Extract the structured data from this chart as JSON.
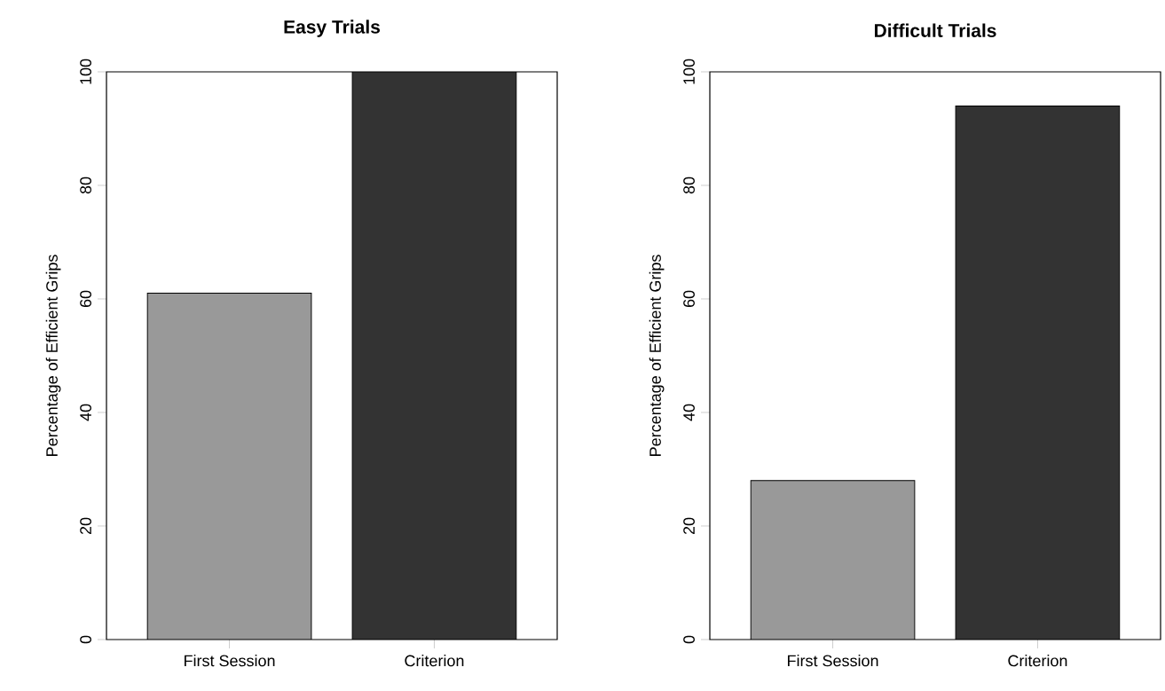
{
  "chart_data": [
    {
      "type": "bar",
      "title": "Easy Trials",
      "ylabel": "Percentage of Efficient Grips",
      "categories": [
        "First Session",
        "Criterion"
      ],
      "values": [
        61,
        100
      ],
      "colors": [
        "#999999",
        "#333333"
      ],
      "ylim": [
        0,
        100
      ],
      "yticks": [
        0,
        20,
        40,
        60,
        80,
        100
      ]
    },
    {
      "type": "bar",
      "title": "Difficult Trials",
      "ylabel": "Percentage of Efficient Grips",
      "categories": [
        "First Session",
        "Criterion"
      ],
      "values": [
        28,
        94
      ],
      "colors": [
        "#999999",
        "#333333"
      ],
      "ylim": [
        0,
        100
      ],
      "yticks": [
        0,
        20,
        40,
        60,
        80,
        100
      ]
    }
  ]
}
